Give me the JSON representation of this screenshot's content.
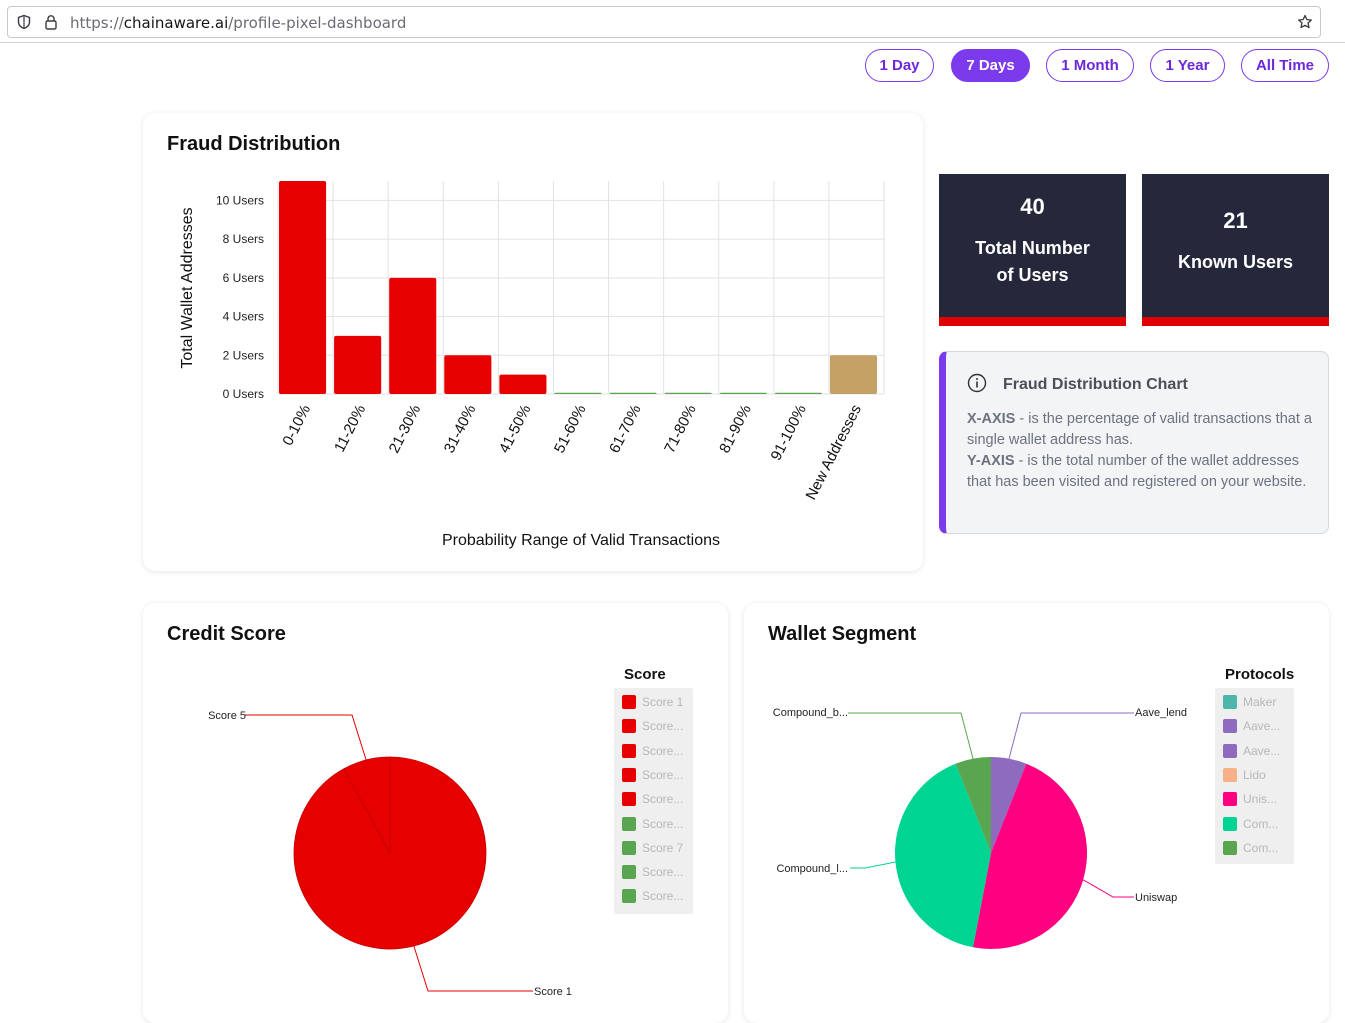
{
  "browser": {
    "url_prefix": "https://",
    "url_host": "chainaware.ai",
    "url_path": "/profile-pixel-dashboard"
  },
  "time_ranges": [
    {
      "label": "1 Day",
      "active": false
    },
    {
      "label": "7 Days",
      "active": true
    },
    {
      "label": "1 Month",
      "active": false
    },
    {
      "label": "1 Year",
      "active": false
    },
    {
      "label": "All Time",
      "active": false
    }
  ],
  "fraud": {
    "title": "Fraud Distribution"
  },
  "stats": {
    "total_users_value": "40",
    "total_users_label_1": "Total Number",
    "total_users_label_2": "of Users",
    "known_users_value": "21",
    "known_users_label": "Known Users"
  },
  "info": {
    "title": "Fraud Distribution Chart",
    "x_key": "X-AXIS",
    "x_text": " - is the percentage of valid transactions that a single wallet address has.",
    "y_key": "Y-AXIS",
    "y_text": " - is the total number of the wallet addresses that has been visited and registered on your website."
  },
  "credit": {
    "title": "Credit Score",
    "legend_title": "Score",
    "legend": [
      "Score 1",
      "Score...",
      "Score...",
      "Score...",
      "Score...",
      "Score...",
      "Score 7",
      "Score...",
      "Score..."
    ],
    "legend_colors": [
      "#e60000",
      "#e60000",
      "#e60000",
      "#e60000",
      "#e60000",
      "#5aa650",
      "#5aa650",
      "#5aa650",
      "#5aa650"
    ]
  },
  "wallet": {
    "title": "Wallet Segment",
    "legend_title": "Protocols",
    "legend": [
      "Maker",
      "Aave...",
      "Aave...",
      "Lido",
      "Unis...",
      "Com...",
      "Com..."
    ],
    "legend_colors": [
      "#4db6ac",
      "#8e6bbf",
      "#8e6bbf",
      "#f7b188",
      "#ff0080",
      "#00d492",
      "#5aa650"
    ]
  },
  "chart_data": [
    {
      "type": "bar",
      "title": "Fraud Distribution",
      "xlabel": "Probability Range of Valid Transactions",
      "ylabel": "Total Wallet Addresses",
      "categories": [
        "0-10%",
        "11-20%",
        "21-30%",
        "31-40%",
        "41-50%",
        "51-60%",
        "61-70%",
        "71-80%",
        "81-90%",
        "91-100%",
        "New Addresses"
      ],
      "values": [
        11,
        3,
        6,
        2,
        1,
        0,
        0,
        0,
        0,
        0,
        2
      ],
      "colors": [
        "#e60000",
        "#e60000",
        "#e60000",
        "#e60000",
        "#e60000",
        "#5aa650",
        "#5aa650",
        "#5aa650",
        "#5aa650",
        "#5aa650",
        "#c4a265"
      ],
      "yticks": [
        "0 Users",
        "2 Users",
        "4 Users",
        "6 Users",
        "8 Users",
        "10 Users"
      ],
      "ylim": [
        0,
        11
      ],
      "grid": true
    },
    {
      "type": "pie",
      "title": "Credit Score",
      "slices": [
        {
          "label": "Score 1",
          "value": 92,
          "color": "#e60000"
        },
        {
          "label": "Score 5",
          "value": 8,
          "color": "#e60000"
        }
      ]
    },
    {
      "type": "pie",
      "title": "Wallet Segment",
      "slices": [
        {
          "label": "Aave_lend",
          "value": 6,
          "color": "#8e6bbf"
        },
        {
          "label": "Uniswap",
          "value": 47,
          "color": "#ff0080"
        },
        {
          "label": "Compound_l...",
          "value": 41,
          "color": "#00d492"
        },
        {
          "label": "Compound_b...",
          "value": 6,
          "color": "#5aa650"
        }
      ]
    }
  ]
}
